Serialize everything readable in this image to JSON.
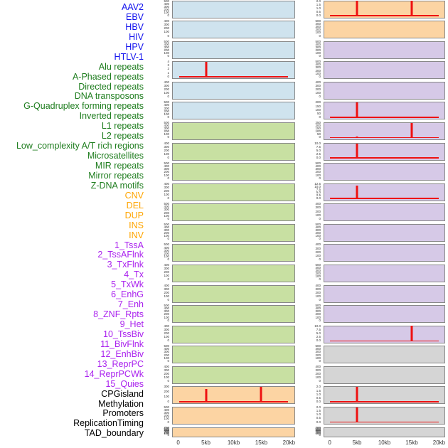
{
  "figure": {
    "colors": {
      "border": "#888888",
      "spike": "#ee1111",
      "groups": {
        "virus": {
          "label": "#1212ee",
          "fill": "#cfe3ee"
        },
        "repeat": {
          "label": "#1e7d1e",
          "fill": "#c8e0a2"
        },
        "sv": {
          "label": "#ffa500",
          "fill": "#fcd4a3"
        },
        "chromatin": {
          "label": "#aa22ee",
          "fill": "#d6c9e7"
        },
        "other": {
          "label": "#000000",
          "fill": "#d5d5d5"
        }
      }
    }
  },
  "chart_data": {
    "type": "line",
    "description": "44 genomic feature tracks; each mini panel shows a red count profile across a 0-20kb window. Most tracks are flat at 0; spikes listed per track. Tracks fill two panel columns (left column = first 22 tracks, right column = last 22), labels listed down the left edge.",
    "x_unit": "kb",
    "x_range": [
      0,
      20
    ],
    "x_ticks": [
      "0",
      "5kb",
      "10kb",
      "15kb",
      "20kb"
    ],
    "legend_position": "none",
    "grid": false,
    "tracks": [
      {
        "name": "AAV2",
        "group": "virus",
        "column": "left",
        "y_ticks": [
          "500",
          "400",
          "300",
          "200",
          "100",
          "0"
        ],
        "ymax": 500,
        "spikes": [],
        "baseline": false
      },
      {
        "name": "EBV",
        "group": "virus",
        "column": "left",
        "y_ticks": [
          "400",
          "300",
          "200",
          "100",
          "0"
        ],
        "ymax": 400,
        "spikes": [],
        "baseline": false
      },
      {
        "name": "HBV",
        "group": "virus",
        "column": "left",
        "y_ticks": [
          "500",
          "400",
          "300",
          "200",
          "100",
          "0"
        ],
        "ymax": 500,
        "spikes": [],
        "baseline": false
      },
      {
        "name": "HIV",
        "group": "virus",
        "column": "left",
        "y_ticks": [
          "4",
          "3",
          "2",
          "1",
          "0"
        ],
        "ymax": 4,
        "spikes": [
          {
            "x_kb": 5,
            "value": 4
          }
        ],
        "baseline": true
      },
      {
        "name": "HPV",
        "group": "virus",
        "column": "left",
        "y_ticks": [
          "400",
          "300",
          "200",
          "100",
          "0"
        ],
        "ymax": 400,
        "spikes": [],
        "baseline": false
      },
      {
        "name": "HTLV-1",
        "group": "virus",
        "column": "left",
        "y_ticks": [
          "500",
          "400",
          "300",
          "200",
          "100",
          "0"
        ],
        "ymax": 500,
        "spikes": [],
        "baseline": false
      },
      {
        "name": "Alu repeats",
        "group": "repeat",
        "column": "left",
        "y_ticks": [
          "500",
          "400",
          "300",
          "200",
          "100",
          "0"
        ],
        "ymax": 500,
        "spikes": [],
        "baseline": false
      },
      {
        "name": "A-Phased repeats",
        "group": "repeat",
        "column": "left",
        "y_ticks": [
          "400",
          "300",
          "200",
          "100",
          "0"
        ],
        "ymax": 400,
        "spikes": [],
        "baseline": false
      },
      {
        "name": "Directed repeats",
        "group": "repeat",
        "column": "left",
        "y_ticks": [
          "500",
          "400",
          "300",
          "200",
          "100",
          "0"
        ],
        "ymax": 500,
        "spikes": [],
        "baseline": false
      },
      {
        "name": "DNA transposons",
        "group": "repeat",
        "column": "left",
        "y_ticks": [
          "400",
          "300",
          "200",
          "100",
          "0"
        ],
        "ymax": 400,
        "spikes": [],
        "baseline": false
      },
      {
        "name": "G-Quadruplex forming repeats",
        "group": "repeat",
        "column": "left",
        "y_ticks": [
          "500",
          "400",
          "300",
          "200",
          "100",
          "0"
        ],
        "ymax": 500,
        "spikes": [],
        "baseline": false
      },
      {
        "name": "Inverted repeats",
        "group": "repeat",
        "column": "left",
        "y_ticks": [
          "500",
          "400",
          "300",
          "200",
          "100",
          "0"
        ],
        "ymax": 500,
        "spikes": [],
        "baseline": false
      },
      {
        "name": "L1 repeats",
        "group": "repeat",
        "column": "left",
        "y_ticks": [
          "500",
          "400",
          "300",
          "200",
          "100",
          "0"
        ],
        "ymax": 500,
        "spikes": [],
        "baseline": false
      },
      {
        "name": "L2 repeats",
        "group": "repeat",
        "column": "left",
        "y_ticks": [
          "400",
          "300",
          "200",
          "100",
          "0"
        ],
        "ymax": 400,
        "spikes": [],
        "baseline": false
      },
      {
        "name": "Low_complexity A/T rich regions",
        "group": "repeat",
        "column": "left",
        "y_ticks": [
          "400",
          "300",
          "200",
          "100",
          "0"
        ],
        "ymax": 400,
        "spikes": [],
        "baseline": false
      },
      {
        "name": "Microsatellites",
        "group": "repeat",
        "column": "left",
        "y_ticks": [
          "500",
          "400",
          "300",
          "200",
          "100",
          "0"
        ],
        "ymax": 500,
        "spikes": [],
        "baseline": false
      },
      {
        "name": "MIR repeats",
        "group": "repeat",
        "column": "left",
        "y_ticks": [
          "400",
          "300",
          "200",
          "100",
          "0"
        ],
        "ymax": 400,
        "spikes": [],
        "baseline": false
      },
      {
        "name": "Mirror repeats",
        "group": "repeat",
        "column": "left",
        "y_ticks": [
          "500",
          "400",
          "300",
          "200",
          "100",
          "0"
        ],
        "ymax": 500,
        "spikes": [],
        "baseline": false
      },
      {
        "name": "Z-DNA motifs",
        "group": "repeat",
        "column": "left",
        "y_ticks": [
          "400",
          "300",
          "200",
          "100",
          "0"
        ],
        "ymax": 400,
        "spikes": [],
        "baseline": false
      },
      {
        "name": "CNV",
        "group": "sv",
        "column": "left",
        "y_ticks": [
          "300",
          "200",
          "100",
          "0"
        ],
        "ymax": 300,
        "spikes": [
          {
            "x_kb": 5,
            "value": 265
          },
          {
            "x_kb": 15,
            "value": 300
          }
        ],
        "baseline": true
      },
      {
        "name": "DEL",
        "group": "sv",
        "column": "left",
        "y_ticks": [
          "500",
          "400",
          "300",
          "200",
          "100",
          "0"
        ],
        "ymax": 500,
        "spikes": [],
        "baseline": false
      },
      {
        "name": "DUP",
        "group": "sv",
        "column": "left",
        "y_ticks": [
          "700",
          "600",
          "500",
          "400",
          "300",
          "200",
          "100",
          "0"
        ],
        "ymax": 700,
        "spikes": [],
        "baseline": false
      },
      {
        "name": "INS",
        "group": "sv",
        "column": "right",
        "y_ticks": [
          "2.0",
          "1.5",
          "1.0",
          "0.5",
          "0.0"
        ],
        "ymax": 2,
        "spikes": [
          {
            "x_kb": 5,
            "value": 2
          },
          {
            "x_kb": 15,
            "value": 2
          }
        ],
        "baseline": true
      },
      {
        "name": "INV",
        "group": "sv",
        "column": "right",
        "y_ticks": [
          "500",
          "400",
          "300",
          "200",
          "100",
          "0"
        ],
        "ymax": 500,
        "spikes": [],
        "baseline": false
      },
      {
        "name": "1_TssA",
        "group": "chromatin",
        "column": "right",
        "y_ticks": [
          "500",
          "400",
          "300",
          "200",
          "100",
          "0"
        ],
        "ymax": 500,
        "spikes": [],
        "baseline": false
      },
      {
        "name": "2_TssAFlnk",
        "group": "chromatin",
        "column": "right",
        "y_ticks": [
          "500",
          "400",
          "300",
          "200",
          "100",
          "0"
        ],
        "ymax": 500,
        "spikes": [],
        "baseline": false
      },
      {
        "name": "3_TxFlnk",
        "group": "chromatin",
        "column": "right",
        "y_ticks": [
          "400",
          "300",
          "200",
          "100",
          "0"
        ],
        "ymax": 400,
        "spikes": [],
        "baseline": false
      },
      {
        "name": "4_Tx",
        "group": "chromatin",
        "column": "right",
        "y_ticks": [
          "200",
          "150",
          "100",
          "50",
          "0"
        ],
        "ymax": 200,
        "spikes": [
          {
            "x_kb": 5,
            "value": 200
          }
        ],
        "baseline": true
      },
      {
        "name": "5_TxWk",
        "group": "chromatin",
        "column": "right",
        "y_ticks": [
          "250",
          "200",
          "150",
          "100",
          "50",
          "0"
        ],
        "ymax": 250,
        "spikes": [
          {
            "x_kb": 5,
            "value": 30
          },
          {
            "x_kb": 15,
            "value": 250
          }
        ],
        "baseline": true
      },
      {
        "name": "6_EnhG",
        "group": "chromatin",
        "column": "right",
        "y_ticks": [
          "10.0",
          "7.5",
          "5.0",
          "2.5",
          "0.0"
        ],
        "ymax": 10,
        "spikes": [
          {
            "x_kb": 5,
            "value": 9.5
          }
        ],
        "baseline": true
      },
      {
        "name": "7_Enh",
        "group": "chromatin",
        "column": "right",
        "y_ticks": [
          "500",
          "400",
          "300",
          "200",
          "100",
          "0"
        ],
        "ymax": 500,
        "spikes": [],
        "baseline": false
      },
      {
        "name": "8_ZNF_Rpts",
        "group": "chromatin",
        "column": "right",
        "y_ticks": [
          "12.5",
          "10.0",
          "7.5",
          "5.0",
          "2.5",
          "0.0"
        ],
        "ymax": 12.5,
        "spikes": [
          {
            "x_kb": 5,
            "value": 11
          }
        ],
        "baseline": true
      },
      {
        "name": "9_Het",
        "group": "chromatin",
        "column": "right",
        "y_ticks": [
          "400",
          "300",
          "200",
          "100",
          "0"
        ],
        "ymax": 400,
        "spikes": [],
        "baseline": false
      },
      {
        "name": "10_TssBiv",
        "group": "chromatin",
        "column": "right",
        "y_ticks": [
          "500",
          "400",
          "300",
          "200",
          "100",
          "0"
        ],
        "ymax": 500,
        "spikes": [],
        "baseline": false
      },
      {
        "name": "11_BivFlnk",
        "group": "chromatin",
        "column": "right",
        "y_ticks": [
          "400",
          "300",
          "200",
          "100",
          "0"
        ],
        "ymax": 400,
        "spikes": [],
        "baseline": false
      },
      {
        "name": "12_EnhBiv",
        "group": "chromatin",
        "column": "right",
        "y_ticks": [
          "500",
          "400",
          "300",
          "200",
          "100",
          "0"
        ],
        "ymax": 500,
        "spikes": [],
        "baseline": false
      },
      {
        "name": "13_ReprPC",
        "group": "chromatin",
        "column": "right",
        "y_ticks": [
          "400",
          "300",
          "200",
          "100",
          "0"
        ],
        "ymax": 400,
        "spikes": [],
        "baseline": false
      },
      {
        "name": "14_ReprPCWk",
        "group": "chromatin",
        "column": "right",
        "y_ticks": [
          "500",
          "400",
          "300",
          "200",
          "100",
          "0"
        ],
        "ymax": 500,
        "spikes": [],
        "baseline": false
      },
      {
        "name": "15_Quies",
        "group": "chromatin",
        "column": "right",
        "y_ticks": [
          "10.0",
          "7.5",
          "5.0",
          "2.5",
          "0.0"
        ],
        "ymax": 10,
        "spikes": [
          {
            "x_kb": 15,
            "value": 10
          }
        ],
        "baseline": true
      },
      {
        "name": "CPGisland",
        "group": "other",
        "column": "right",
        "y_ticks": [
          "500",
          "400",
          "300",
          "200",
          "100",
          "0"
        ],
        "ymax": 500,
        "spikes": [],
        "baseline": false
      },
      {
        "name": "Methylation",
        "group": "other",
        "column": "right",
        "y_ticks": [
          "400",
          "300",
          "200",
          "100",
          "0"
        ],
        "ymax": 400,
        "spikes": [],
        "baseline": false
      },
      {
        "name": "Promoters",
        "group": "other",
        "column": "right",
        "y_ticks": [
          "2.0",
          "1.5",
          "1.0",
          "0.5",
          "0.0"
        ],
        "ymax": 2,
        "spikes": [
          {
            "x_kb": 5,
            "value": 2
          }
        ],
        "baseline": true
      },
      {
        "name": "ReplicationTiming",
        "group": "other",
        "column": "right",
        "y_ticks": [
          "2.0",
          "1.5",
          "1.0",
          "0.5",
          "0.0"
        ],
        "ymax": 2,
        "spikes": [
          {
            "x_kb": 5,
            "value": 2
          }
        ],
        "baseline": true
      },
      {
        "name": "TAD_boundary",
        "group": "other",
        "column": "right",
        "y_ticks": [
          "700",
          "600",
          "500",
          "400",
          "300",
          "200",
          "100",
          "0"
        ],
        "ymax": 700,
        "spikes": [],
        "baseline": false
      }
    ]
  }
}
